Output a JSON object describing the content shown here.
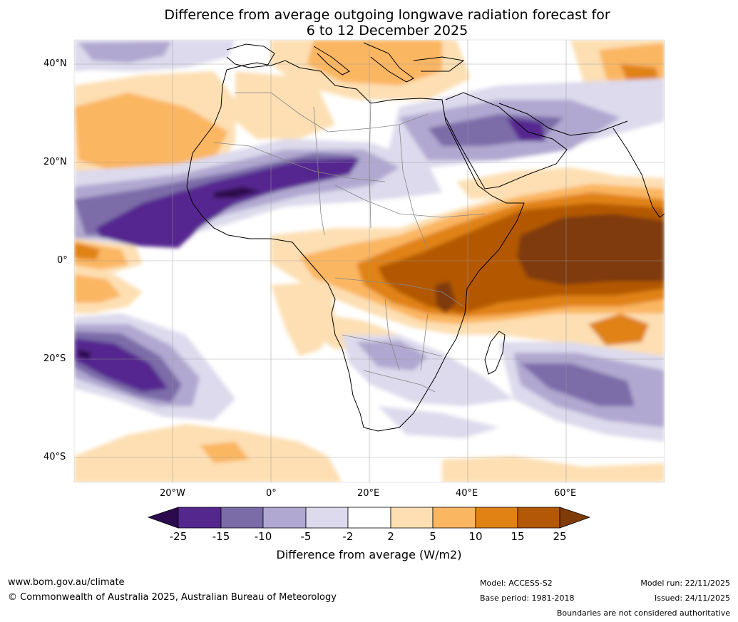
{
  "title": {
    "line1": "Difference from average outgoing longwave radiation forecast for",
    "line2": "6 to 12 December 2025"
  },
  "axes": {
    "lat_labels": [
      "40°N",
      "20°N",
      "0°",
      "20°S",
      "40°S"
    ],
    "lon_labels": [
      "20°W",
      "0°",
      "20°E",
      "40°E",
      "60°E"
    ]
  },
  "colorbar": {
    "ticks": [
      "-25",
      "-15",
      "-10",
      "-5",
      "-2",
      "2",
      "5",
      "10",
      "15",
      "25"
    ],
    "label": "Difference from average (W/m2)",
    "colors": [
      "#2d0a4e",
      "#54278f",
      "#7b6ca8",
      "#b0a8d0",
      "#dcdaec",
      "#ffffff",
      "#fddfb3",
      "#fbb662",
      "#e08214",
      "#b35806",
      "#7f3b08"
    ]
  },
  "footer": {
    "website": "www.bom.gov.au/climate",
    "copyright": "© Commonwealth of Australia 2025, Australian Bureau of Meteorology",
    "model": "Model: ACCESS-S2",
    "base_period": "Base period: 1981-2018",
    "model_run": "Model run: 22/11/2025",
    "issued": "Issued: 24/11/2025",
    "disclaimer": "Boundaries are not considered authoritative"
  }
}
